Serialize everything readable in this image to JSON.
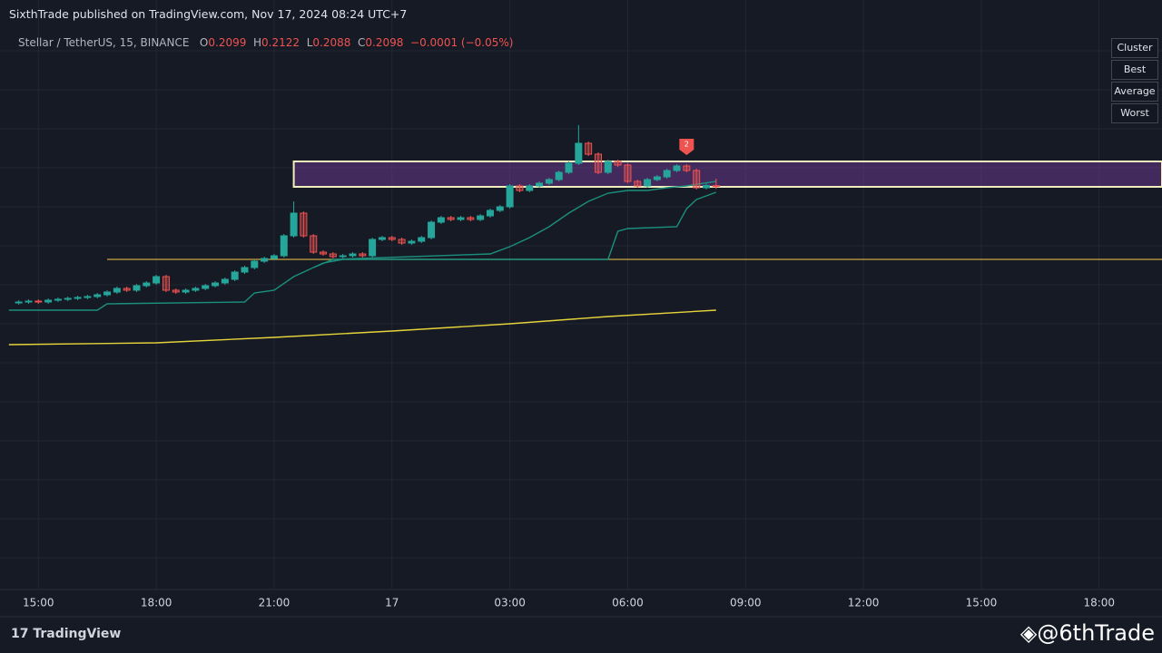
{
  "header": {
    "published": "SixthTrade published on TradingView.com, Nov 17, 2024 08:24 UTC+7"
  },
  "buttons": [
    "Cluster",
    "Best",
    "Average",
    "Worst"
  ],
  "footer": {
    "brand": "TradingView",
    "watermark": "@6thTrade"
  },
  "chart_data": {
    "type": "candlestick",
    "symbol": "Stellar / TetherUS, 15, BINANCE",
    "ohlc_letters": [
      "O",
      "H",
      "L",
      "C"
    ],
    "change": "−0.0001 (−0.05%)",
    "up_color": "#26a69a",
    "down_color": "#ef5350",
    "xlim": [
      14.3,
      43.6
    ],
    "ylim": [
      0.0763,
      0.2623
    ],
    "xticks": [
      {
        "value": 15,
        "label": "15:00"
      },
      {
        "value": 18,
        "label": "18:00"
      },
      {
        "value": 21,
        "label": "21:00"
      },
      {
        "value": 24,
        "label": "17"
      },
      {
        "value": 27,
        "label": "03:00"
      },
      {
        "value": 30,
        "label": "06:00"
      },
      {
        "value": 33,
        "label": "09:00"
      },
      {
        "value": 36,
        "label": "12:00"
      },
      {
        "value": 39,
        "label": "15:00"
      },
      {
        "value": 42,
        "label": "18:00"
      }
    ],
    "grid": true,
    "x": [
      14.5,
      14.75,
      15,
      15.25,
      15.5,
      15.75,
      16,
      16.25,
      16.5,
      16.75,
      17,
      17.25,
      17.5,
      17.75,
      18,
      18.25,
      18.5,
      18.75,
      19,
      19.25,
      19.5,
      19.75,
      20,
      20.25,
      20.5,
      20.75,
      21,
      21.25,
      21.5,
      21.75,
      22,
      22.25,
      22.5,
      22.75,
      23,
      23.25,
      23.5,
      23.75,
      24,
      24.25,
      24.5,
      24.75,
      25,
      25.25,
      25.5,
      25.75,
      26,
      26.25,
      26.5,
      26.75,
      27,
      27.25,
      27.5,
      27.75,
      28,
      28.25,
      28.5,
      28.75,
      29,
      29.25,
      29.5,
      29.75,
      30,
      30.25,
      30.5,
      30.75,
      31,
      31.25,
      31.5,
      31.75,
      32,
      32.25
    ],
    "open": [
      0.1711,
      0.1714,
      0.1717,
      0.1714,
      0.172,
      0.1723,
      0.1726,
      0.1729,
      0.1732,
      0.1738,
      0.1747,
      0.1759,
      0.1753,
      0.1768,
      0.1777,
      0.1798,
      0.1753,
      0.1747,
      0.1753,
      0.1759,
      0.1768,
      0.1777,
      0.1789,
      0.1813,
      0.1828,
      0.1849,
      0.1858,
      0.1867,
      0.1933,
      0.2008,
      0.1933,
      0.1879,
      0.1873,
      0.1864,
      0.1867,
      0.1873,
      0.1867,
      0.1921,
      0.1927,
      0.1921,
      0.1909,
      0.1915,
      0.1927,
      0.1978,
      0.1993,
      0.1987,
      0.1993,
      0.1987,
      0.1999,
      0.2017,
      0.2029,
      0.2098,
      0.2083,
      0.2098,
      0.2107,
      0.2119,
      0.2143,
      0.2173,
      0.2239,
      0.2203,
      0.2143,
      0.2179,
      0.2167,
      0.2113,
      0.2098,
      0.2119,
      0.2128,
      0.2149,
      0.2164,
      0.2149,
      0.2092,
      0.2099
    ],
    "high": [
      0.172,
      0.1723,
      0.1723,
      0.1726,
      0.1729,
      0.1732,
      0.1735,
      0.1738,
      0.1744,
      0.1753,
      0.1765,
      0.1765,
      0.1774,
      0.1783,
      0.1804,
      0.1804,
      0.1759,
      0.1759,
      0.1765,
      0.1774,
      0.1783,
      0.1795,
      0.1819,
      0.1834,
      0.1855,
      0.1864,
      0.1873,
      0.1939,
      0.2047,
      0.2014,
      0.1939,
      0.1885,
      0.1879,
      0.1873,
      0.1879,
      0.1879,
      0.1927,
      0.1933,
      0.1933,
      0.1927,
      0.1921,
      0.1933,
      0.1984,
      0.1999,
      0.1999,
      0.1999,
      0.1999,
      0.2005,
      0.2023,
      0.2035,
      0.2104,
      0.2104,
      0.2104,
      0.2113,
      0.2125,
      0.2149,
      0.2179,
      0.2299,
      0.2245,
      0.2209,
      0.2185,
      0.2185,
      0.2173,
      0.2119,
      0.2125,
      0.2134,
      0.2155,
      0.217,
      0.217,
      0.2155,
      0.2105,
      0.2122
    ],
    "low": [
      0.1705,
      0.1708,
      0.1708,
      0.1708,
      0.1714,
      0.1717,
      0.172,
      0.1723,
      0.1726,
      0.1732,
      0.1741,
      0.1747,
      0.1747,
      0.1762,
      0.1771,
      0.1747,
      0.1741,
      0.1741,
      0.1747,
      0.1753,
      0.1762,
      0.1771,
      0.1783,
      0.1807,
      0.1822,
      0.1843,
      0.1852,
      0.1861,
      0.1927,
      0.1927,
      0.1873,
      0.1867,
      0.1858,
      0.1858,
      0.1861,
      0.1861,
      0.1861,
      0.1915,
      0.1915,
      0.1903,
      0.1903,
      0.1909,
      0.1921,
      0.1972,
      0.1981,
      0.1981,
      0.1981,
      0.1981,
      0.1993,
      0.2011,
      0.2023,
      0.2077,
      0.2077,
      0.2092,
      0.2101,
      0.2113,
      0.2137,
      0.2167,
      0.2197,
      0.2137,
      0.2137,
      0.2161,
      0.2107,
      0.2092,
      0.2092,
      0.2113,
      0.2122,
      0.2143,
      0.2143,
      0.2086,
      0.2086,
      0.2088
    ],
    "close": [
      0.1714,
      0.1717,
      0.1714,
      0.172,
      0.1723,
      0.1726,
      0.1729,
      0.1732,
      0.1738,
      0.1747,
      0.1759,
      0.1753,
      0.1768,
      0.1777,
      0.1798,
      0.1753,
      0.1747,
      0.1753,
      0.1759,
      0.1768,
      0.1777,
      0.1789,
      0.1813,
      0.1828,
      0.1849,
      0.1858,
      0.1867,
      0.1933,
      0.2008,
      0.1933,
      0.1879,
      0.1873,
      0.1864,
      0.1867,
      0.1873,
      0.1867,
      0.1921,
      0.1927,
      0.1921,
      0.1909,
      0.1915,
      0.1927,
      0.1978,
      0.1993,
      0.1987,
      0.1993,
      0.1987,
      0.1999,
      0.2017,
      0.2029,
      0.2098,
      0.2083,
      0.2098,
      0.2107,
      0.2119,
      0.2143,
      0.2173,
      0.2239,
      0.2203,
      0.2143,
      0.2179,
      0.2167,
      0.2113,
      0.2098,
      0.2119,
      0.2128,
      0.2149,
      0.2164,
      0.2149,
      0.2092,
      0.2099,
      0.2098
    ],
    "lines": [
      {
        "color": "#1b8f7d",
        "x": [
          14.25,
          16.5,
          16.75,
          20.25,
          20.5,
          21,
          21.5,
          21.75,
          22.25,
          22.75,
          29.5,
          29.75,
          30,
          31.25,
          31.5,
          31.75,
          32.25
        ],
        "values": [
          0.1687,
          0.1687,
          0.1708,
          0.1714,
          0.1744,
          0.1753,
          0.1798,
          0.1813,
          0.1843,
          0.1855,
          0.1855,
          0.1948,
          0.1957,
          0.1963,
          0.2023,
          0.2053,
          0.2077
        ]
      },
      {
        "color": "#1b8f7d",
        "x": [
          22,
          22.5,
          26.5,
          27,
          27.5,
          28,
          28.5,
          29,
          29.5,
          30,
          30.5,
          31,
          31.5,
          32.25
        ],
        "values": [
          0.1828,
          0.1855,
          0.1873,
          0.1897,
          0.1927,
          0.1963,
          0.2008,
          0.2047,
          0.2074,
          0.2083,
          0.2083,
          0.2092,
          0.2098,
          0.2113
        ]
      },
      {
        "color": "#e5d33a",
        "x": [
          14.25,
          18,
          21,
          24,
          27,
          29.5,
          32.25
        ],
        "values": [
          0.1573,
          0.1579,
          0.1597,
          0.1618,
          0.1642,
          0.1666,
          0.1687
        ]
      }
    ],
    "hline": {
      "value": 0.1855,
      "from": 16.75,
      "color": "#c9a640"
    },
    "zone": {
      "low": 0.2095,
      "high": 0.2179,
      "from": 21.5,
      "color": "#7b3fa0"
    },
    "marker": {
      "x": 31.5,
      "label": "2",
      "color": "#ef5350"
    }
  }
}
